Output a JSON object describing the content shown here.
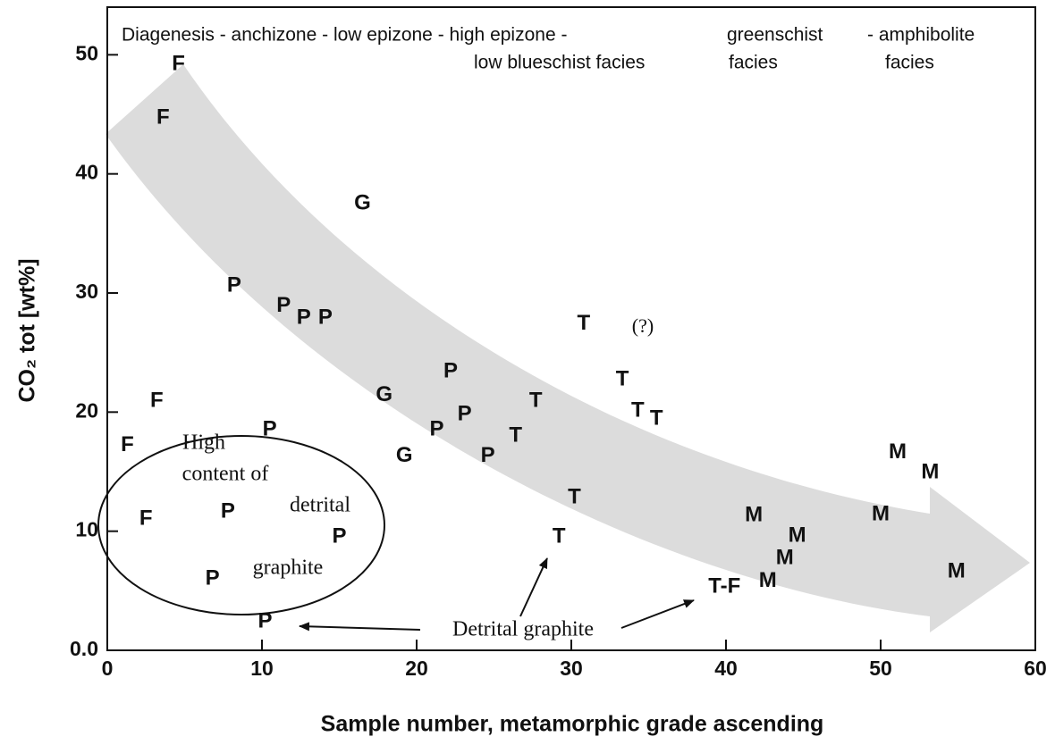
{
  "chart_data": {
    "type": "scatter",
    "x_label": "Sample number, metamorphic grade ascending",
    "y_label": "CO₂ tot  [wt%]",
    "xlim": [
      0,
      60
    ],
    "xticks": [
      0,
      10,
      20,
      30,
      40,
      50,
      60
    ],
    "ylim": [
      0,
      54
    ],
    "yticks": [
      {
        "value": 0,
        "label": "0.0"
      },
      10,
      20,
      30,
      40,
      50
    ],
    "series": [
      {
        "name": "F",
        "x": [
          4.6,
          3.6,
          3.2,
          1.3,
          2.5
        ],
        "y": [
          49.2,
          44.7,
          20.9,
          17.2,
          11.0
        ]
      },
      {
        "name": "P",
        "x": [
          8.2,
          11.4,
          12.7,
          14.1,
          22.2,
          23.1,
          21.3,
          10.5,
          24.6,
          7.8,
          15.0,
          6.8,
          10.2
        ],
        "y": [
          30.6,
          28.9,
          27.9,
          27.9,
          23.4,
          19.8,
          18.5,
          18.5,
          16.3,
          11.6,
          9.5,
          6.0,
          2.4
        ]
      },
      {
        "name": "G",
        "x": [
          16.5,
          17.9,
          19.2
        ],
        "y": [
          37.5,
          21.4,
          16.3
        ]
      },
      {
        "name": "T",
        "x": [
          30.8,
          33.3,
          34.3,
          35.5,
          27.7,
          26.4,
          30.2,
          29.2
        ],
        "y": [
          27.4,
          22.7,
          20.1,
          19.4,
          20.9,
          18.0,
          12.8,
          9.5
        ]
      },
      {
        "name": "T-F",
        "x": [
          39.9
        ],
        "y": [
          5.3
        ]
      },
      {
        "name": "M",
        "x": [
          41.8,
          44.6,
          43.8,
          42.7,
          51.1,
          53.2,
          50.0,
          54.9
        ],
        "y": [
          11.3,
          9.6,
          7.7,
          5.8,
          16.6,
          14.9,
          11.4,
          6.6
        ]
      }
    ],
    "annotations": [
      "Diagenesis - anchizone - low epizone - high epizone -",
      "greenschist",
      "- amphibolite",
      "low blueschist facies",
      "facies",
      "facies",
      "(?)",
      "High",
      "content of",
      "detrital",
      "graphite",
      "Detrital graphite"
    ]
  }
}
